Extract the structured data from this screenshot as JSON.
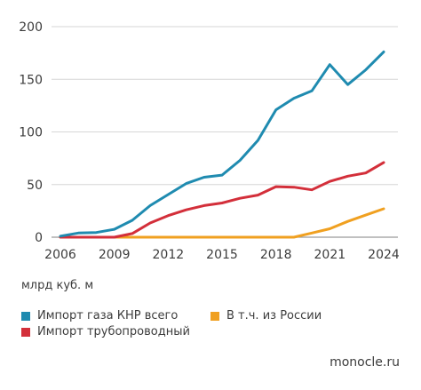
{
  "chart_data": {
    "type": "line",
    "x": [
      2006,
      2007,
      2008,
      2009,
      2010,
      2011,
      2012,
      2013,
      2014,
      2015,
      2016,
      2017,
      2018,
      2019,
      2020,
      2021,
      2022,
      2023,
      2024
    ],
    "xticks": [
      "2006",
      "2009",
      "2012",
      "2015",
      "2018",
      "2021",
      "2024"
    ],
    "yticks": [
      "0",
      "50",
      "100",
      "150",
      "200"
    ],
    "ylim": [
      0,
      200
    ],
    "xlim": [
      2006,
      2024
    ],
    "ylabel": "млрд куб. м",
    "grid": "horizontal",
    "legend_position": "bottom",
    "series": [
      {
        "name": "Импорт газа КНР всего",
        "color": "#1f8bb0",
        "values": [
          1,
          4,
          4.5,
          7.5,
          16,
          30,
          40.5,
          51,
          57,
          59,
          73,
          92,
          121,
          132,
          139,
          164,
          145,
          159,
          176
        ]
      },
      {
        "name": "Импорт трубопроводный",
        "color": "#d32f3a",
        "values": [
          0,
          0,
          0,
          0,
          3.5,
          13.5,
          20.5,
          26,
          30,
          32.5,
          37,
          40,
          48,
          47.5,
          45,
          53,
          58,
          61,
          71
        ]
      },
      {
        "name": "В т.ч. из России",
        "color": "#f0a020",
        "values": [
          0,
          0,
          0,
          0,
          0,
          0,
          0,
          0,
          0,
          0,
          0,
          0,
          0,
          0,
          4,
          8,
          15,
          21,
          27
        ]
      }
    ]
  },
  "unit_label": "млрд куб. м",
  "legend": {
    "total": "Импорт газа КНР всего",
    "pipeline": "Импорт трубопроводный",
    "russia": "В т.ч. из России"
  },
  "source": "monocle.ru"
}
